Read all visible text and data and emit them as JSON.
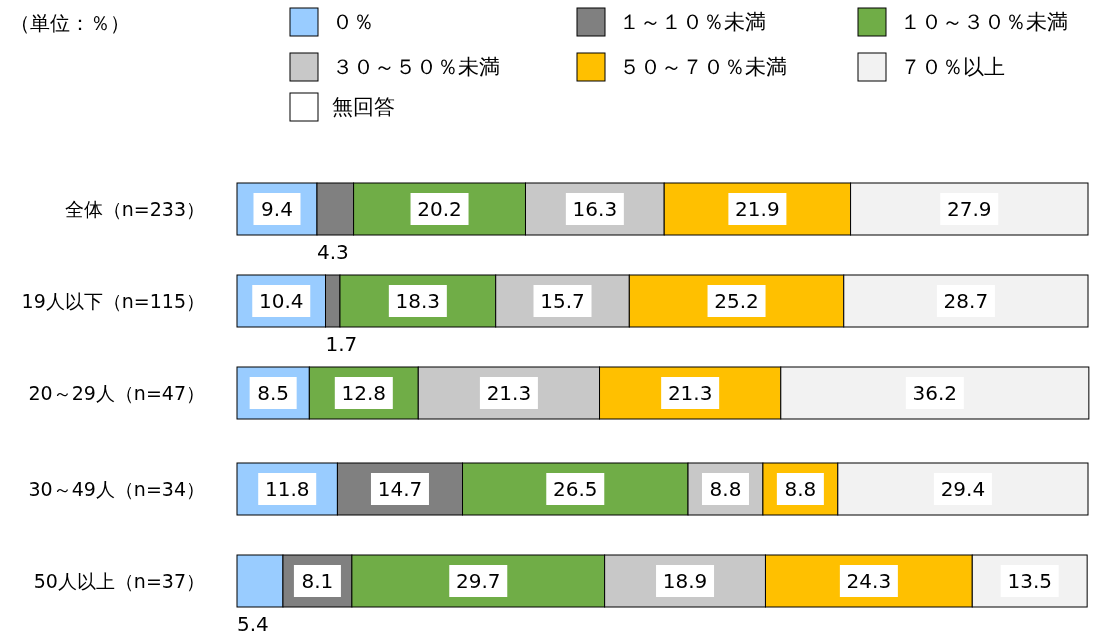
{
  "chart_data": {
    "type": "bar",
    "orientation": "horizontal",
    "stacked": true,
    "categories": [
      "全体（n=233）",
      "19人以下（n=115）",
      "20～29人（n=47）",
      "30～49人（n=34）",
      "50人以上（n=37）"
    ],
    "series": [
      {
        "name": "０％",
        "color": "#99ccff",
        "values": [
          9.4,
          10.4,
          8.5,
          11.8,
          5.4
        ],
        "value_labels": [
          "9.4",
          "10.4",
          "8.5",
          "11.8",
          "5.4"
        ]
      },
      {
        "name": "１～１０％未満",
        "color": "#808080",
        "values": [
          4.3,
          1.7,
          null,
          14.7,
          8.1
        ],
        "value_labels": [
          "4.3",
          "1.7",
          null,
          "14.7",
          "8.1"
        ]
      },
      {
        "name": "１０～３０％未満",
        "color": "#70ad47",
        "values": [
          20.2,
          18.3,
          12.8,
          26.5,
          29.7
        ],
        "value_labels": [
          "20.2",
          "18.3",
          "12.8",
          "26.5",
          "29.7"
        ]
      },
      {
        "name": "３０～５０％未満",
        "color": "#c8c8c8",
        "values": [
          16.3,
          15.7,
          21.3,
          8.8,
          18.9
        ],
        "value_labels": [
          "16.3",
          "15.7",
          "21.3",
          "8.8",
          "18.9"
        ]
      },
      {
        "name": "５０～７０％未満",
        "color": "#ffc000",
        "values": [
          21.9,
          25.2,
          21.3,
          8.8,
          24.3
        ],
        "value_labels": [
          "21.9",
          "25.2",
          "21.3",
          "8.8",
          "24.3"
        ]
      },
      {
        "name": "７０％以上",
        "color": "#f2f2f2",
        "values": [
          27.9,
          28.7,
          36.2,
          29.4,
          13.5
        ],
        "value_labels": [
          "27.9",
          "28.7",
          "36.2",
          "29.4",
          "13.5"
        ]
      },
      {
        "name": "無回答",
        "color": "#ffffff",
        "values": [
          null,
          null,
          null,
          null,
          null
        ]
      }
    ],
    "xlim": [
      0,
      100
    ],
    "legend": "top",
    "annotations": [
      "（単位：％）"
    ]
  }
}
